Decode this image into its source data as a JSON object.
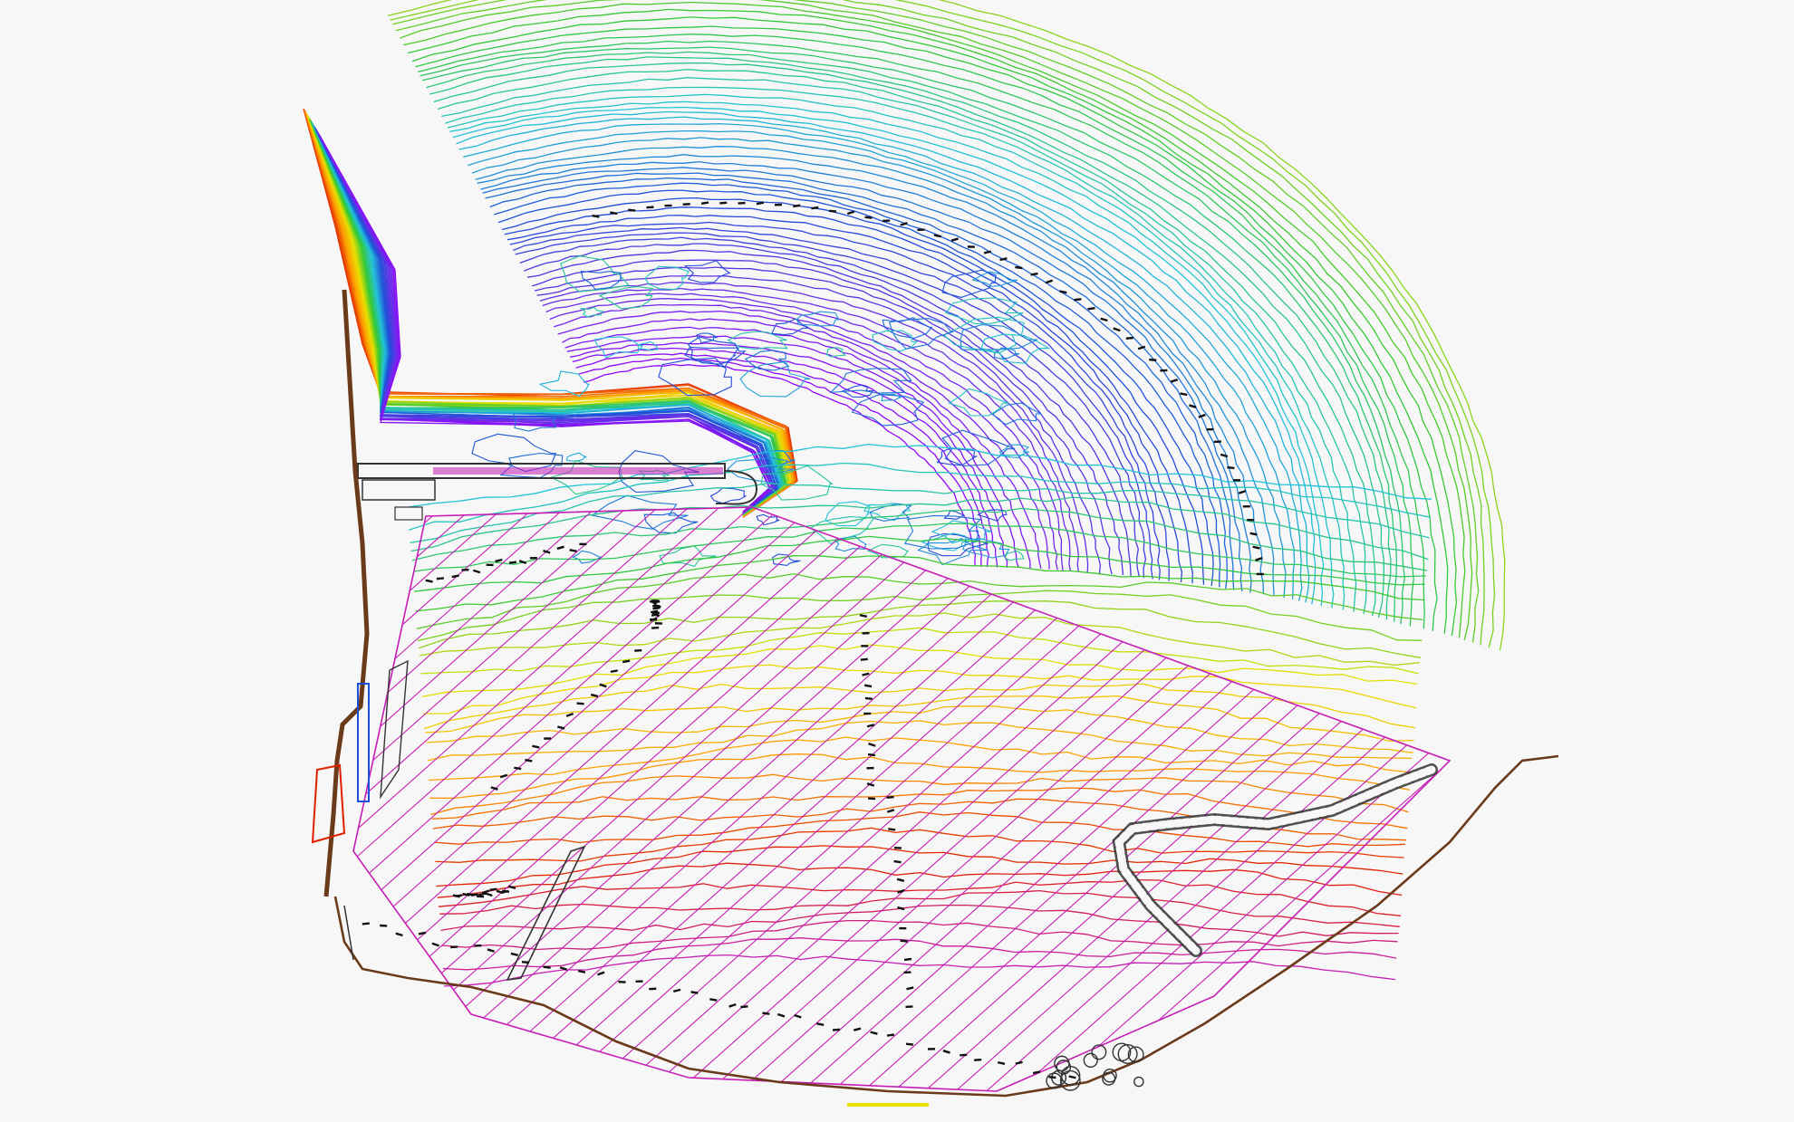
{
  "map": {
    "background": "#f7f7f7",
    "palette": {
      "deep": "#9b00ff",
      "violet": "#6a2ee8",
      "blue": "#1e4fd8",
      "cyan": "#22c3d8",
      "green": "#33c833",
      "yellow": "#e8e000",
      "orange": "#ff9a00",
      "red": "#e02000",
      "hatch": "#c51db5",
      "coast": "#6b3a1a",
      "structure": "#333333"
    },
    "layers": [
      "bathymetric-contours",
      "shoal-contours",
      "breakwater",
      "groin",
      "rubble-mound-breakwater",
      "hatched-fill-area",
      "coastline",
      "depth-soundings"
    ]
  }
}
